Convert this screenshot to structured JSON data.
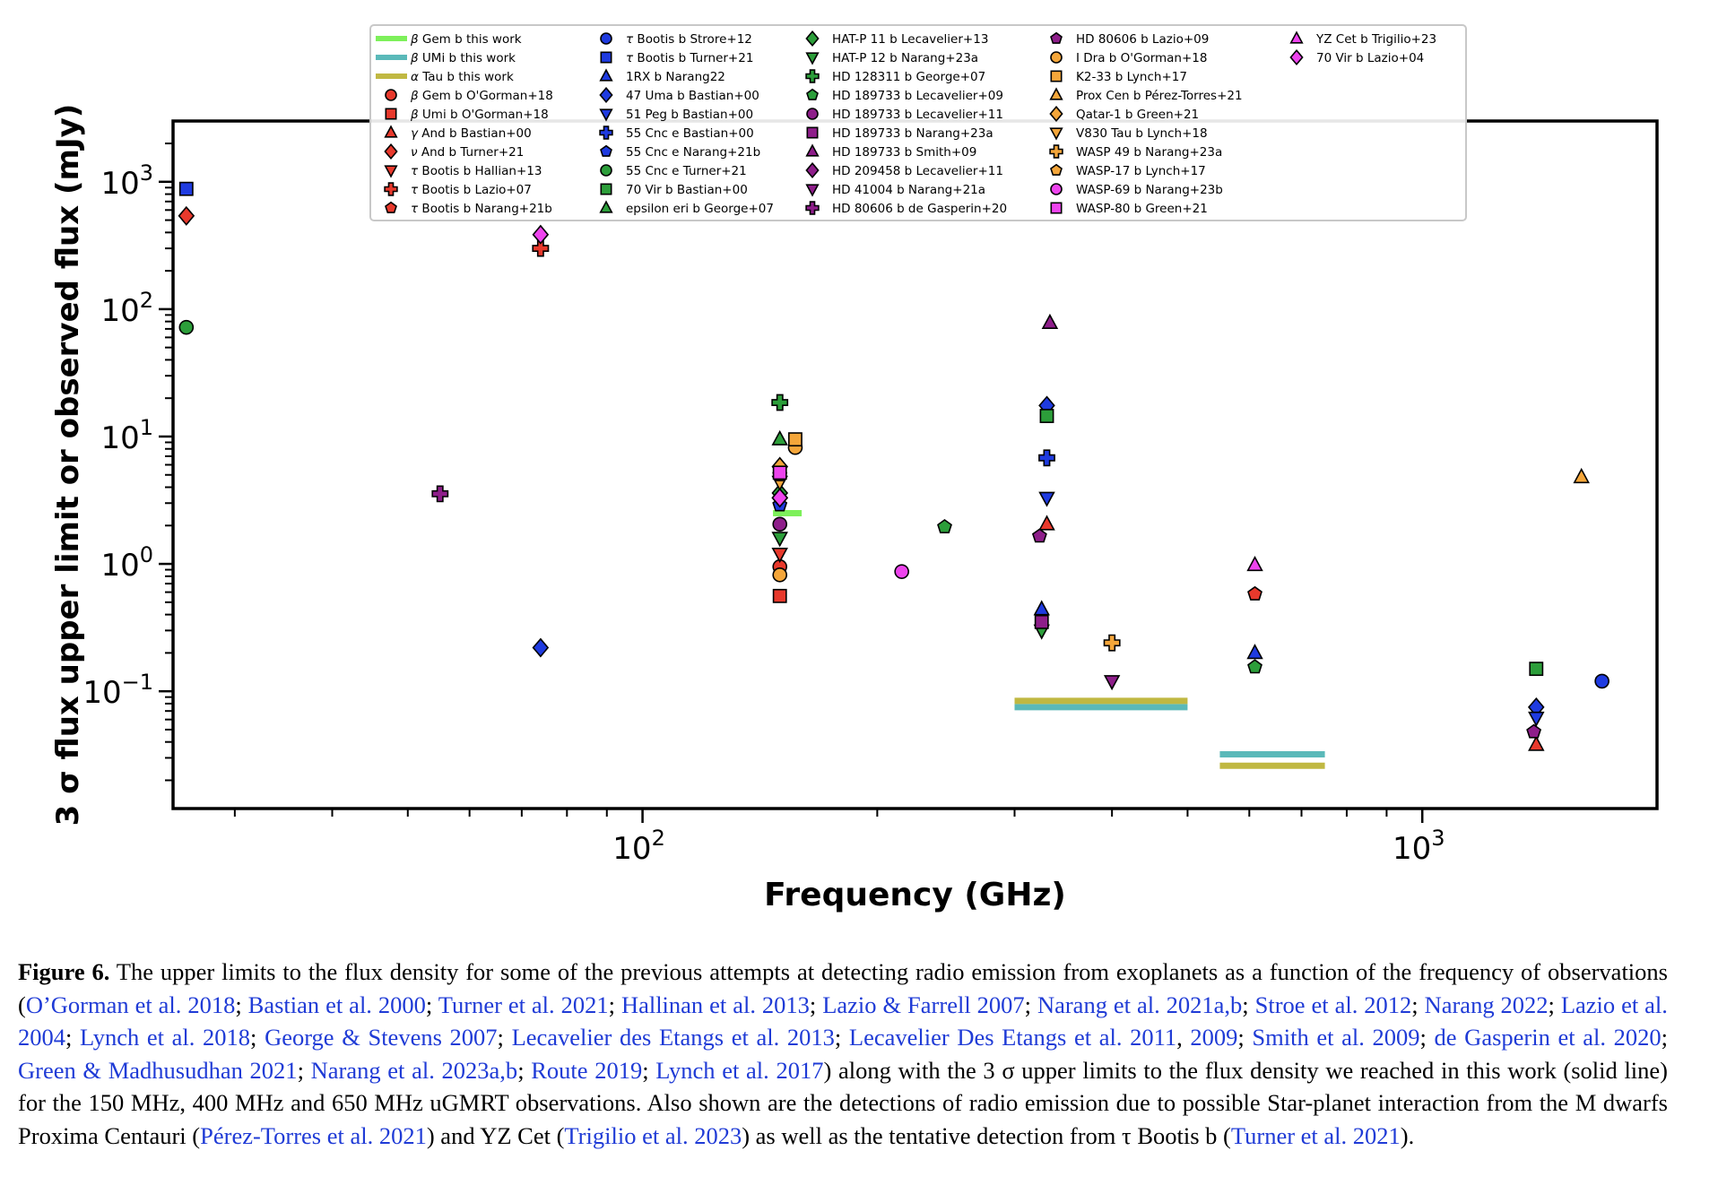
{
  "chart_data": {
    "type": "scatter",
    "title": "",
    "xlabel": "Frequency (GHz)",
    "ylabel": "3 σ flux upper limit or observed flux (mJy)",
    "x_scale": "log",
    "y_scale": "log",
    "xlim": [
      25,
      2000
    ],
    "ylim": [
      0.012,
      3000
    ],
    "x_ticks": [
      {
        "value": 100,
        "label_base": "10",
        "label_exp": "2"
      },
      {
        "value": 1000,
        "label_base": "10",
        "label_exp": "3"
      }
    ],
    "y_ticks": [
      {
        "value": 0.1,
        "label_base": "10",
        "label_exp": "−1"
      },
      {
        "value": 1,
        "label_base": "10",
        "label_exp": "0"
      },
      {
        "value": 10,
        "label_base": "10",
        "label_exp": "1"
      },
      {
        "value": 100,
        "label_base": "10",
        "label_exp": "2"
      },
      {
        "value": 1000,
        "label_base": "10",
        "label_exp": "3"
      }
    ],
    "grid": false,
    "legend_position": "top-center",
    "series": [
      {
        "name": "β Gem b this work",
        "label_prefix": "β",
        "label_rest": " Gem b this work",
        "kind": "line",
        "color": "#7df05a",
        "x_range": [
          147,
          160
        ],
        "y": 2.5
      },
      {
        "name": "β UMi b this work",
        "label_prefix": "β",
        "label_rest": " UMi b this work",
        "kind": "line",
        "color": "#5ab9b9",
        "x_range": [
          300,
          500
        ],
        "y": 0.075
      },
      {
        "name": "α Tau b this work",
        "label_prefix": "α",
        "label_rest": " Tau b this work",
        "kind": "line",
        "color": "#c0b842",
        "x_range": [
          300,
          500
        ],
        "y": 0.084
      },
      {
        "name": "β UMi b this work (650 MHz)",
        "legend": false,
        "kind": "line",
        "color": "#5ab9b9",
        "x_range": [
          550,
          750
        ],
        "y": 0.032
      },
      {
        "name": "α Tau b this work (650 MHz)",
        "legend": false,
        "kind": "line",
        "color": "#c0b842",
        "x_range": [
          550,
          750
        ],
        "y": 0.026
      },
      {
        "name": "β Gem b O'Gorman+18",
        "label_prefix": "β",
        "label_rest": " Gem b O'Gorman+18",
        "kind": "marker",
        "marker": "circle",
        "color": "#e8392c",
        "points": [
          [
            150,
            0.95
          ]
        ]
      },
      {
        "name": "β Umi b O'Gorman+18",
        "label_prefix": "β",
        "label_rest": " Umi b O'Gorman+18",
        "kind": "marker",
        "marker": "square",
        "color": "#e8392c",
        "points": [
          [
            150,
            0.56
          ]
        ]
      },
      {
        "name": "γ And b Bastian+00",
        "label_prefix": "γ",
        "label_rest": " And b Bastian+00",
        "kind": "marker",
        "marker": "triangle-up",
        "color": "#e8392c",
        "points": [
          [
            330,
            2.05
          ],
          [
            1400,
            0.038
          ]
        ]
      },
      {
        "name": "ν And b Turner+21",
        "label_prefix": "ν",
        "label_rest": " And b Turner+21",
        "kind": "marker",
        "marker": "diamond",
        "color": "#e8392c",
        "points": [
          [
            26,
            540
          ]
        ]
      },
      {
        "name": "τ Bootis b Hallian+13",
        "label_prefix": "τ",
        "label_rest": " Bootis b Hallian+13",
        "kind": "marker",
        "marker": "triangle-down",
        "color": "#e8392c",
        "points": [
          [
            150,
            1.2
          ]
        ]
      },
      {
        "name": "τ Bootis b Lazio+07",
        "label_prefix": "τ",
        "label_rest": " Bootis b Lazio+07",
        "kind": "marker",
        "marker": "plus",
        "color": "#e8392c",
        "points": [
          [
            74,
            300
          ]
        ]
      },
      {
        "name": "τ Bootis b Narang+21b",
        "label_prefix": "τ",
        "label_rest": " Bootis b Narang+21b",
        "kind": "marker",
        "marker": "pentagon",
        "color": "#e8392c",
        "points": [
          [
            610,
            0.58
          ]
        ]
      },
      {
        "name": "τ Bootis b Strore+12",
        "label_prefix": "τ",
        "label_rest": " Bootis b Strore+12",
        "kind": "marker",
        "marker": "circle",
        "color": "#1f3be0",
        "points": [
          [
            1700,
            0.12
          ]
        ]
      },
      {
        "name": "τ Bootis b Turner+21",
        "label_prefix": "τ",
        "label_rest": " Bootis b Turner+21",
        "kind": "marker",
        "marker": "square",
        "color": "#1f3be0",
        "points": [
          [
            26,
            880
          ]
        ]
      },
      {
        "name": "1RX b Narang22",
        "kind": "marker",
        "marker": "triangle-up",
        "color": "#1f3be0",
        "points": [
          [
            325,
            0.44
          ],
          [
            610,
            0.2
          ]
        ]
      },
      {
        "name": "47 Uma b Bastian+00",
        "kind": "marker",
        "marker": "diamond",
        "color": "#1f3be0",
        "points": [
          [
            74,
            0.22
          ],
          [
            330,
            17.5
          ],
          [
            1400,
            0.075
          ]
        ]
      },
      {
        "name": "51 Peg b Bastian+00",
        "kind": "marker",
        "marker": "triangle-down",
        "color": "#1f3be0",
        "points": [
          [
            330,
            3.3
          ],
          [
            1400,
            0.062
          ]
        ]
      },
      {
        "name": "55 Cnc e Bastian+00",
        "kind": "marker",
        "marker": "plus",
        "color": "#1f3be0",
        "points": [
          [
            330,
            6.8
          ]
        ]
      },
      {
        "name": "55 Cnc e Narang+21b",
        "kind": "marker",
        "marker": "pentagon",
        "color": "#1f3be0",
        "points": [
          [
            150,
            2.9
          ]
        ]
      },
      {
        "name": "55 Cnc e Turner+21",
        "kind": "marker",
        "marker": "circle",
        "color": "#2c9e3a",
        "points": [
          [
            26,
            72
          ]
        ]
      },
      {
        "name": "70 Vir b Bastian+00",
        "kind": "marker",
        "marker": "square",
        "color": "#2c9e3a",
        "points": [
          [
            330,
            14.5
          ],
          [
            1400,
            0.15
          ]
        ]
      },
      {
        "name": "epsilon eri b George+07",
        "kind": "marker",
        "marker": "triangle-up",
        "color": "#2c9e3a",
        "points": [
          [
            150,
            9.5
          ]
        ]
      },
      {
        "name": "HAT-P 11 b Lecavelier+13",
        "kind": "marker",
        "marker": "diamond",
        "color": "#2c9e3a",
        "points": [
          [
            150,
            3.6
          ]
        ]
      },
      {
        "name": "HAT-P 12 b Narang+23a",
        "kind": "marker",
        "marker": "triangle-down",
        "color": "#2c9e3a",
        "points": [
          [
            150,
            1.6
          ],
          [
            325,
            0.3
          ]
        ]
      },
      {
        "name": "HD 128311 b George+07",
        "kind": "marker",
        "marker": "plus",
        "color": "#2c9e3a",
        "points": [
          [
            150,
            18.5
          ]
        ]
      },
      {
        "name": "HD 189733 b Lecavelier+09",
        "kind": "marker",
        "marker": "pentagon",
        "color": "#2c9e3a",
        "points": [
          [
            244,
            1.95
          ],
          [
            610,
            0.155
          ]
        ]
      },
      {
        "name": "HD 189733 b Lecavelier+11",
        "kind": "marker",
        "marker": "circle",
        "color": "#8e1e8a",
        "points": [
          [
            150,
            2.05
          ]
        ]
      },
      {
        "name": "HD 189733 b Narang+23a",
        "kind": "marker",
        "marker": "square",
        "color": "#8e1e8a",
        "points": [
          [
            325,
            0.35
          ]
        ]
      },
      {
        "name": "HD 189733 b Smith+09",
        "kind": "marker",
        "marker": "triangle-up",
        "color": "#8e1e8a",
        "points": [
          [
            333,
            78
          ]
        ]
      },
      {
        "name": "HD 209458 b Lecavelier+11",
        "kind": "marker",
        "marker": "diamond",
        "color": "#8e1e8a",
        "points": [
          [
            150,
            3.3
          ]
        ]
      },
      {
        "name": "HD 41004 b Narang+21a",
        "kind": "marker",
        "marker": "triangle-down",
        "color": "#8e1e8a",
        "points": [
          [
            400,
            0.12
          ]
        ]
      },
      {
        "name": "HD 80606 b de Gasperin+20",
        "kind": "marker",
        "marker": "plus",
        "color": "#8e1e8a",
        "points": [
          [
            55,
            3.55
          ]
        ]
      },
      {
        "name": "HD 80606 b Lazio+09",
        "kind": "marker",
        "marker": "pentagon",
        "color": "#8e1e8a",
        "points": [
          [
            323,
            1.65
          ],
          [
            1390,
            0.048
          ]
        ]
      },
      {
        "name": "I Dra b O'Gorman+18",
        "kind": "marker",
        "marker": "circle",
        "color": "#f4a63a",
        "points": [
          [
            150,
            0.82
          ],
          [
            157,
            8.2
          ]
        ]
      },
      {
        "name": "K2-33 b Lynch+17",
        "kind": "marker",
        "marker": "square",
        "color": "#f4a63a",
        "points": [
          [
            157,
            9.5
          ]
        ]
      },
      {
        "name": "Prox Cen b Pérez-Torres+21",
        "kind": "marker",
        "marker": "triangle-up",
        "color": "#f4a63a",
        "points": [
          [
            1600,
            4.8
          ]
        ]
      },
      {
        "name": "Qatar-1 b Green+21",
        "kind": "marker",
        "marker": "diamond",
        "color": "#f4a63a",
        "points": [
          [
            150,
            5.8
          ]
        ]
      },
      {
        "name": "V830 Tau b Lynch+18",
        "kind": "marker",
        "marker": "triangle-down",
        "color": "#f4a63a",
        "points": [
          [
            150,
            4.4
          ]
        ]
      },
      {
        "name": "WASP 49 b Narang+23a",
        "kind": "marker",
        "marker": "plus",
        "color": "#f4a63a",
        "points": [
          [
            400,
            0.24
          ]
        ]
      },
      {
        "name": "WASP-17 b Lynch+17",
        "kind": "marker",
        "marker": "pentagon",
        "color": "#f4a63a",
        "points": [
          [
            150,
            5.0
          ]
        ]
      },
      {
        "name": "WASP-69 b Narang+23b",
        "kind": "marker",
        "marker": "circle",
        "color": "#ee44ee",
        "points": [
          [
            215,
            0.87
          ]
        ]
      },
      {
        "name": "WASP-80 b Green+21",
        "kind": "marker",
        "marker": "square",
        "color": "#ee44ee",
        "points": [
          [
            150,
            5.2
          ]
        ]
      },
      {
        "name": "YZ Cet b Trigilio+23",
        "kind": "marker",
        "marker": "triangle-up",
        "color": "#ee44ee",
        "points": [
          [
            610,
            0.98
          ]
        ]
      },
      {
        "name": "70 Vir b Lazio+04",
        "kind": "marker",
        "marker": "diamond",
        "color": "#ee44ee",
        "points": [
          [
            74,
            385
          ],
          [
            150,
            3.3
          ]
        ]
      }
    ]
  },
  "caption": {
    "label": "Figure 6.",
    "parts": [
      {
        "t": " The upper limits to the flux density for some of the previous attempts at detecting radio emission from exoplanets as a function of the frequency of observations ("
      },
      {
        "t": "O’Gorman et al. 2018",
        "ref": true
      },
      {
        "t": "; "
      },
      {
        "t": "Bastian et al. 2000",
        "ref": true
      },
      {
        "t": "; "
      },
      {
        "t": "Turner et al. 2021",
        "ref": true
      },
      {
        "t": "; "
      },
      {
        "t": "Hallinan et al. 2013",
        "ref": true
      },
      {
        "t": "; "
      },
      {
        "t": "Lazio & Farrell 2007",
        "ref": true
      },
      {
        "t": "; "
      },
      {
        "t": "Narang et al. 2021a,b",
        "ref": true
      },
      {
        "t": "; "
      },
      {
        "t": "Stroe et al. 2012",
        "ref": true
      },
      {
        "t": "; "
      },
      {
        "t": "Narang 2022",
        "ref": true
      },
      {
        "t": "; "
      },
      {
        "t": "Lazio et al. 2004",
        "ref": true
      },
      {
        "t": "; "
      },
      {
        "t": "Lynch et al. 2018",
        "ref": true
      },
      {
        "t": "; "
      },
      {
        "t": "George & Stevens 2007",
        "ref": true
      },
      {
        "t": "; "
      },
      {
        "t": "Lecavelier des Etangs et al. 2013",
        "ref": true
      },
      {
        "t": "; "
      },
      {
        "t": "Lecavelier Des Etangs et al. 2011",
        "ref": true
      },
      {
        "t": ", "
      },
      {
        "t": "2009",
        "ref": true
      },
      {
        "t": "; "
      },
      {
        "t": "Smith et al. 2009",
        "ref": true
      },
      {
        "t": "; "
      },
      {
        "t": "de Gasperin et al. 2020",
        "ref": true
      },
      {
        "t": "; "
      },
      {
        "t": "Green & Madhusudhan 2021",
        "ref": true
      },
      {
        "t": "; "
      },
      {
        "t": "Narang et al. 2023a,b",
        "ref": true
      },
      {
        "t": "; "
      },
      {
        "t": "Route 2019",
        "ref": true
      },
      {
        "t": "; "
      },
      {
        "t": "Lynch et al. 2017",
        "ref": true
      },
      {
        "t": ") along with the 3 σ upper limits to the flux density we reached in this work (solid line) for the 150 MHz, 400 MHz and 650 MHz uGMRT observations. Also shown are the detections of radio emission due to possible Star-planet interaction from the M dwarfs Proxima Centauri ("
      },
      {
        "t": "Pérez-Torres et al. 2021",
        "ref": true
      },
      {
        "t": ") and YZ Cet ("
      },
      {
        "t": "Trigilio et al. 2023",
        "ref": true
      },
      {
        "t": ") as well as the tentative detection from τ Bootis b ("
      },
      {
        "t": "Turner et al. 2021",
        "ref": true
      },
      {
        "t": ")."
      }
    ]
  }
}
